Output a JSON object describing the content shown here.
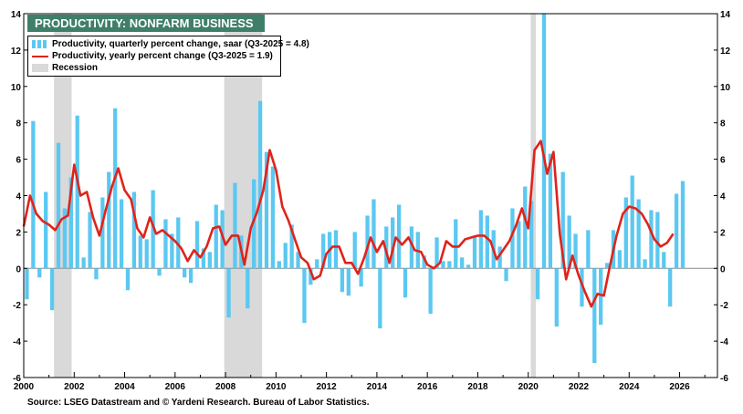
{
  "title": "PRODUCTIVITY: NONFARM BUSINESS",
  "legend": {
    "bars": "Productivity, quarterly percent change, saar (Q3-2025 = 4.8)",
    "line": "Productivity, yearly percent change (Q3-2025 = 1.9)",
    "recession": "Recession"
  },
  "source": "Source: LSEG Datastream and © Yardeni Research. Bureau of Labor Statistics.",
  "colors": {
    "bars": "#5bc8f1",
    "line": "#e0231b",
    "recession": "#d9d9d9",
    "title_bg": "#3f7f6a"
  },
  "chart_data": {
    "type": "bar+line",
    "title": "PRODUCTIVITY: NONFARM BUSINESS",
    "xlabel": "",
    "ylabel": "",
    "xlim": [
      2000.0,
      2027.5
    ],
    "ylim": [
      -6,
      14
    ],
    "x_ticks": [
      2000,
      2002,
      2004,
      2006,
      2008,
      2010,
      2012,
      2014,
      2016,
      2018,
      2020,
      2022,
      2024,
      2026
    ],
    "y_ticks": [
      -6,
      -4,
      -2,
      0,
      2,
      4,
      6,
      8,
      10,
      12,
      14
    ],
    "recessions": [
      [
        2001.2,
        2001.9
      ],
      [
        2007.95,
        2009.45
      ],
      [
        2020.1,
        2020.3
      ]
    ],
    "series": [
      {
        "name": "Productivity, quarterly percent change, saar (Q3-2025 = 4.8)",
        "kind": "bar",
        "start": 2000.0,
        "step": 0.25,
        "values": [
          -1.7,
          8.1,
          -0.5,
          4.2,
          -2.3,
          6.9,
          3.3,
          5.0,
          8.4,
          0.6,
          3.1,
          -0.6,
          3.9,
          5.3,
          8.8,
          3.8,
          -1.2,
          4.2,
          1.8,
          1.6,
          4.3,
          -0.4,
          2.7,
          1.9,
          2.8,
          -0.5,
          -0.8,
          2.6,
          1.1,
          0.9,
          3.5,
          3.2,
          -2.7,
          4.7,
          1.8,
          -2.2,
          4.9,
          9.2,
          6.4,
          5.6,
          0.4,
          1.4,
          2.4,
          0.9,
          -3.0,
          -0.9,
          0.5,
          1.9,
          2.0,
          2.1,
          -1.3,
          -1.5,
          2.0,
          -1.0,
          2.9,
          3.8,
          -3.3,
          2.3,
          2.8,
          3.5,
          -1.6,
          2.3,
          2.0,
          0.7,
          -2.5,
          1.7,
          0.4,
          0.4,
          2.7,
          0.6,
          0.2,
          1.8,
          3.2,
          2.9,
          2.1,
          1.2,
          -0.7,
          3.3,
          2.6,
          4.5,
          3.7,
          -1.7,
          14.0,
          6.3,
          -3.2,
          5.3,
          2.9,
          1.9,
          -2.1,
          2.1,
          -5.2,
          -3.1,
          0.3,
          2.1,
          1.0,
          3.9,
          5.1,
          3.8,
          0.5,
          3.2,
          3.1,
          0.9,
          -2.1,
          4.1,
          4.8
        ]
      },
      {
        "name": "Productivity, yearly percent change (Q3-2025 = 1.9)",
        "kind": "line",
        "points": [
          [
            2000.0,
            2.3
          ],
          [
            2000.25,
            4.0
          ],
          [
            2000.5,
            3.0
          ],
          [
            2000.75,
            2.6
          ],
          [
            2001.0,
            2.4
          ],
          [
            2001.25,
            2.1
          ],
          [
            2001.5,
            2.7
          ],
          [
            2001.75,
            2.9
          ],
          [
            2002.0,
            5.7
          ],
          [
            2002.25,
            4.0
          ],
          [
            2002.5,
            4.2
          ],
          [
            2002.75,
            2.8
          ],
          [
            2003.0,
            1.8
          ],
          [
            2003.25,
            3.2
          ],
          [
            2003.5,
            4.5
          ],
          [
            2003.75,
            5.5
          ],
          [
            2004.0,
            4.3
          ],
          [
            2004.25,
            3.8
          ],
          [
            2004.5,
            2.2
          ],
          [
            2004.75,
            1.7
          ],
          [
            2005.0,
            2.8
          ],
          [
            2005.25,
            1.9
          ],
          [
            2005.5,
            2.1
          ],
          [
            2005.75,
            1.8
          ],
          [
            2006.0,
            1.5
          ],
          [
            2006.25,
            1.1
          ],
          [
            2006.5,
            0.4
          ],
          [
            2006.75,
            1.0
          ],
          [
            2007.0,
            0.6
          ],
          [
            2007.25,
            1.2
          ],
          [
            2007.5,
            2.2
          ],
          [
            2007.75,
            2.3
          ],
          [
            2008.0,
            1.3
          ],
          [
            2008.25,
            1.8
          ],
          [
            2008.5,
            1.8
          ],
          [
            2008.75,
            0.2
          ],
          [
            2009.0,
            2.2
          ],
          [
            2009.25,
            3.1
          ],
          [
            2009.5,
            4.3
          ],
          [
            2009.75,
            6.5
          ],
          [
            2010.0,
            5.4
          ],
          [
            2010.25,
            3.4
          ],
          [
            2010.5,
            2.6
          ],
          [
            2010.75,
            1.6
          ],
          [
            2011.0,
            0.6
          ],
          [
            2011.25,
            0.3
          ],
          [
            2011.5,
            -0.6
          ],
          [
            2011.75,
            -0.4
          ],
          [
            2012.0,
            0.8
          ],
          [
            2012.25,
            1.2
          ],
          [
            2012.5,
            1.2
          ],
          [
            2012.75,
            0.3
          ],
          [
            2013.0,
            0.3
          ],
          [
            2013.25,
            -0.3
          ],
          [
            2013.5,
            0.6
          ],
          [
            2013.75,
            1.7
          ],
          [
            2014.0,
            0.9
          ],
          [
            2014.25,
            1.5
          ],
          [
            2014.5,
            0.3
          ],
          [
            2014.75,
            1.7
          ],
          [
            2015.0,
            1.3
          ],
          [
            2015.25,
            1.7
          ],
          [
            2015.5,
            1.0
          ],
          [
            2015.75,
            0.9
          ],
          [
            2016.0,
            0.2
          ],
          [
            2016.25,
            0.0
          ],
          [
            2016.5,
            0.3
          ],
          [
            2016.75,
            1.5
          ],
          [
            2017.0,
            1.2
          ],
          [
            2017.25,
            1.2
          ],
          [
            2017.5,
            1.6
          ],
          [
            2017.75,
            1.7
          ],
          [
            2018.0,
            1.8
          ],
          [
            2018.25,
            1.8
          ],
          [
            2018.5,
            1.5
          ],
          [
            2018.75,
            0.5
          ],
          [
            2019.0,
            1.0
          ],
          [
            2019.25,
            1.5
          ],
          [
            2019.5,
            2.3
          ],
          [
            2019.75,
            3.3
          ],
          [
            2020.0,
            2.2
          ],
          [
            2020.25,
            6.5
          ],
          [
            2020.5,
            7.0
          ],
          [
            2020.75,
            5.2
          ],
          [
            2021.0,
            6.4
          ],
          [
            2021.25,
            1.9
          ],
          [
            2021.5,
            -0.6
          ],
          [
            2021.75,
            0.7
          ],
          [
            2022.0,
            -0.4
          ],
          [
            2022.25,
            -1.3
          ],
          [
            2022.5,
            -2.1
          ],
          [
            2022.75,
            -1.4
          ],
          [
            2023.0,
            -1.5
          ],
          [
            2023.25,
            0.2
          ],
          [
            2023.5,
            1.8
          ],
          [
            2023.75,
            3.0
          ],
          [
            2024.0,
            3.4
          ],
          [
            2024.25,
            3.3
          ],
          [
            2024.5,
            3.0
          ],
          [
            2024.75,
            2.4
          ],
          [
            2025.0,
            1.6
          ],
          [
            2025.25,
            1.2
          ],
          [
            2025.5,
            1.4
          ],
          [
            2025.75,
            1.9
          ]
        ]
      }
    ]
  }
}
